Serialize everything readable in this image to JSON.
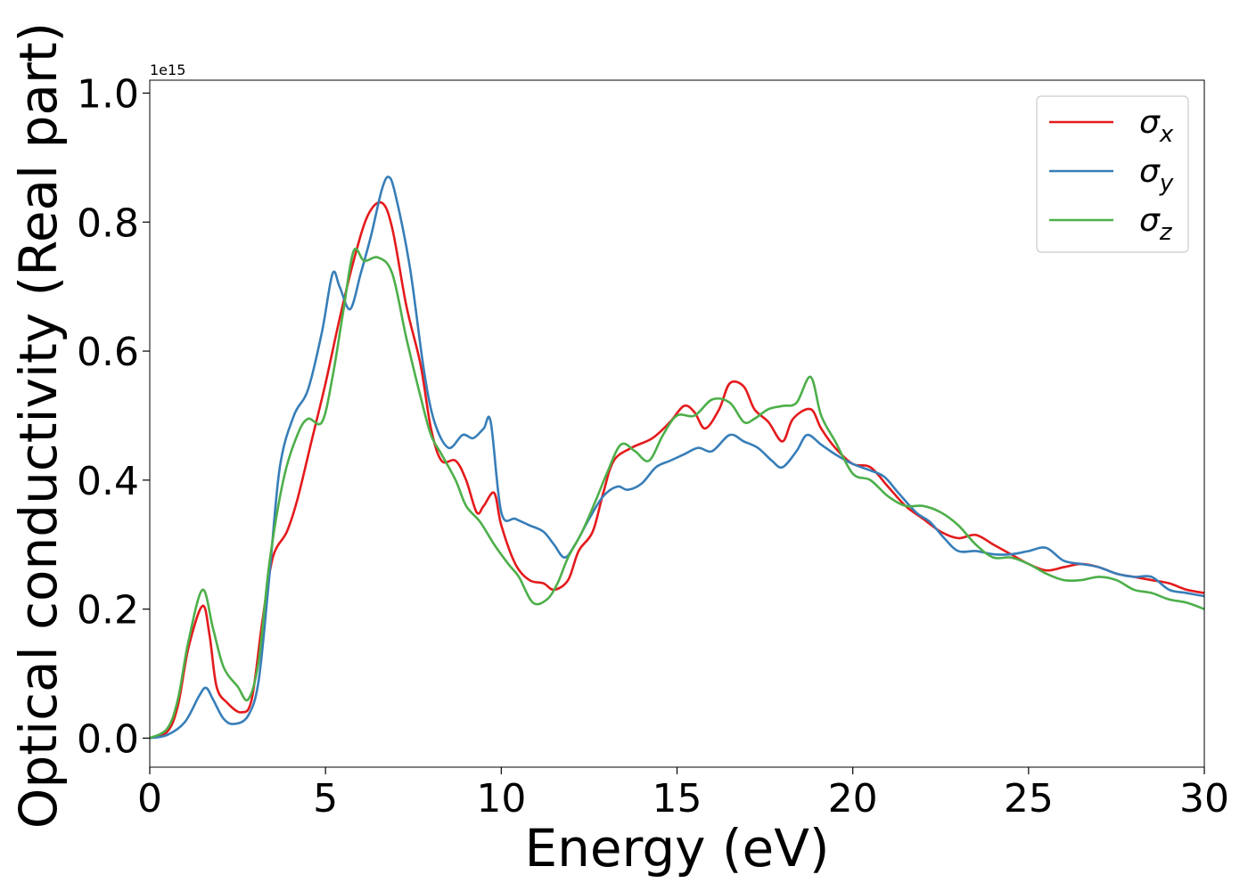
{
  "chart_data": {
    "type": "line",
    "xlabel": "Energy (eV)",
    "ylabel": "Optical conductivity (Real part)",
    "offset_label": "1e15",
    "xlim": [
      0,
      30
    ],
    "ylim": [
      -0.045,
      1.02
    ],
    "x_ticks": [
      0,
      5,
      10,
      15,
      20,
      25,
      30
    ],
    "x_tick_labels": [
      "0",
      "5",
      "10",
      "15",
      "20",
      "25",
      "30"
    ],
    "y_ticks": [
      0.0,
      0.2,
      0.4,
      0.6,
      0.8,
      1.0
    ],
    "y_tick_labels": [
      "0.0",
      "0.2",
      "0.4",
      "0.6",
      "0.8",
      "1.0"
    ],
    "grid": false,
    "legend_position": "top-right",
    "series": [
      {
        "name": "σx",
        "label_base": "σ",
        "label_sub": "x",
        "color": "#e41a1c",
        "points": [
          [
            0,
            0.0
          ],
          [
            0.5,
            0.01
          ],
          [
            0.8,
            0.05
          ],
          [
            1.1,
            0.14
          ],
          [
            1.5,
            0.205
          ],
          [
            1.7,
            0.16
          ],
          [
            1.9,
            0.08
          ],
          [
            2.2,
            0.055
          ],
          [
            2.6,
            0.04
          ],
          [
            2.9,
            0.06
          ],
          [
            3.2,
            0.18
          ],
          [
            3.5,
            0.28
          ],
          [
            3.9,
            0.32
          ],
          [
            4.2,
            0.37
          ],
          [
            4.6,
            0.46
          ],
          [
            5.0,
            0.55
          ],
          [
            5.4,
            0.65
          ],
          [
            5.8,
            0.74
          ],
          [
            6.2,
            0.81
          ],
          [
            6.6,
            0.83
          ],
          [
            6.9,
            0.79
          ],
          [
            7.3,
            0.67
          ],
          [
            7.7,
            0.58
          ],
          [
            8.0,
            0.48
          ],
          [
            8.3,
            0.43
          ],
          [
            8.7,
            0.43
          ],
          [
            9.0,
            0.4
          ],
          [
            9.3,
            0.35
          ],
          [
            9.5,
            0.36
          ],
          [
            9.8,
            0.38
          ],
          [
            10.0,
            0.33
          ],
          [
            10.4,
            0.27
          ],
          [
            10.8,
            0.245
          ],
          [
            11.2,
            0.24
          ],
          [
            11.5,
            0.23
          ],
          [
            11.9,
            0.245
          ],
          [
            12.2,
            0.29
          ],
          [
            12.6,
            0.32
          ],
          [
            12.9,
            0.38
          ],
          [
            13.2,
            0.43
          ],
          [
            13.7,
            0.45
          ],
          [
            14.3,
            0.465
          ],
          [
            14.8,
            0.49
          ],
          [
            15.2,
            0.515
          ],
          [
            15.5,
            0.505
          ],
          [
            15.8,
            0.48
          ],
          [
            16.2,
            0.51
          ],
          [
            16.5,
            0.55
          ],
          [
            16.9,
            0.545
          ],
          [
            17.2,
            0.51
          ],
          [
            17.6,
            0.49
          ],
          [
            18.0,
            0.46
          ],
          [
            18.3,
            0.495
          ],
          [
            18.8,
            0.51
          ],
          [
            19.1,
            0.48
          ],
          [
            19.5,
            0.45
          ],
          [
            20.0,
            0.425
          ],
          [
            20.5,
            0.42
          ],
          [
            21.0,
            0.39
          ],
          [
            21.5,
            0.36
          ],
          [
            22.0,
            0.34
          ],
          [
            22.5,
            0.32
          ],
          [
            23.0,
            0.31
          ],
          [
            23.5,
            0.315
          ],
          [
            24.0,
            0.3
          ],
          [
            24.5,
            0.285
          ],
          [
            25.0,
            0.27
          ],
          [
            25.5,
            0.26
          ],
          [
            26.0,
            0.265
          ],
          [
            26.5,
            0.27
          ],
          [
            27.0,
            0.265
          ],
          [
            27.5,
            0.255
          ],
          [
            28.0,
            0.25
          ],
          [
            28.5,
            0.245
          ],
          [
            29.0,
            0.24
          ],
          [
            29.5,
            0.23
          ],
          [
            30.0,
            0.225
          ]
        ]
      },
      {
        "name": "σy",
        "label_base": "σ",
        "label_sub": "y",
        "color": "#377eb8",
        "points": [
          [
            0,
            0.0
          ],
          [
            0.5,
            0.005
          ],
          [
            1.0,
            0.025
          ],
          [
            1.4,
            0.065
          ],
          [
            1.6,
            0.078
          ],
          [
            1.8,
            0.06
          ],
          [
            2.1,
            0.03
          ],
          [
            2.4,
            0.022
          ],
          [
            2.8,
            0.035
          ],
          [
            3.1,
            0.09
          ],
          [
            3.4,
            0.25
          ],
          [
            3.7,
            0.42
          ],
          [
            4.1,
            0.5
          ],
          [
            4.5,
            0.54
          ],
          [
            4.9,
            0.63
          ],
          [
            5.2,
            0.72
          ],
          [
            5.4,
            0.7
          ],
          [
            5.7,
            0.665
          ],
          [
            6.0,
            0.72
          ],
          [
            6.3,
            0.78
          ],
          [
            6.6,
            0.85
          ],
          [
            6.8,
            0.87
          ],
          [
            7.0,
            0.84
          ],
          [
            7.4,
            0.73
          ],
          [
            7.8,
            0.57
          ],
          [
            8.1,
            0.49
          ],
          [
            8.5,
            0.45
          ],
          [
            8.9,
            0.47
          ],
          [
            9.2,
            0.465
          ],
          [
            9.5,
            0.48
          ],
          [
            9.7,
            0.49
          ],
          [
            10.0,
            0.35
          ],
          [
            10.4,
            0.34
          ],
          [
            10.8,
            0.33
          ],
          [
            11.2,
            0.32
          ],
          [
            11.5,
            0.3
          ],
          [
            11.8,
            0.28
          ],
          [
            12.1,
            0.3
          ],
          [
            12.5,
            0.34
          ],
          [
            12.9,
            0.375
          ],
          [
            13.3,
            0.39
          ],
          [
            13.6,
            0.385
          ],
          [
            14.0,
            0.395
          ],
          [
            14.4,
            0.42
          ],
          [
            14.8,
            0.43
          ],
          [
            15.2,
            0.44
          ],
          [
            15.6,
            0.45
          ],
          [
            16.0,
            0.445
          ],
          [
            16.5,
            0.47
          ],
          [
            16.9,
            0.46
          ],
          [
            17.3,
            0.45
          ],
          [
            17.7,
            0.43
          ],
          [
            18.0,
            0.42
          ],
          [
            18.4,
            0.445
          ],
          [
            18.7,
            0.47
          ],
          [
            19.1,
            0.455
          ],
          [
            19.5,
            0.44
          ],
          [
            20.0,
            0.425
          ],
          [
            20.5,
            0.415
          ],
          [
            20.9,
            0.405
          ],
          [
            21.3,
            0.38
          ],
          [
            21.8,
            0.35
          ],
          [
            22.2,
            0.335
          ],
          [
            22.6,
            0.31
          ],
          [
            23.0,
            0.29
          ],
          [
            23.5,
            0.29
          ],
          [
            24.0,
            0.285
          ],
          [
            24.5,
            0.285
          ],
          [
            25.0,
            0.29
          ],
          [
            25.5,
            0.295
          ],
          [
            26.0,
            0.275
          ],
          [
            26.5,
            0.27
          ],
          [
            27.0,
            0.265
          ],
          [
            27.5,
            0.255
          ],
          [
            28.0,
            0.25
          ],
          [
            28.5,
            0.25
          ],
          [
            29.0,
            0.23
          ],
          [
            29.5,
            0.225
          ],
          [
            30.0,
            0.22
          ]
        ]
      },
      {
        "name": "σz",
        "label_base": "σ",
        "label_sub": "z",
        "color": "#4daf4a",
        "points": [
          [
            0,
            0.0
          ],
          [
            0.5,
            0.015
          ],
          [
            0.8,
            0.06
          ],
          [
            1.1,
            0.15
          ],
          [
            1.5,
            0.23
          ],
          [
            1.8,
            0.17
          ],
          [
            2.1,
            0.11
          ],
          [
            2.5,
            0.08
          ],
          [
            2.8,
            0.06
          ],
          [
            3.1,
            0.12
          ],
          [
            3.4,
            0.27
          ],
          [
            3.8,
            0.4
          ],
          [
            4.2,
            0.47
          ],
          [
            4.5,
            0.495
          ],
          [
            4.9,
            0.49
          ],
          [
            5.2,
            0.56
          ],
          [
            5.5,
            0.66
          ],
          [
            5.8,
            0.755
          ],
          [
            6.1,
            0.74
          ],
          [
            6.5,
            0.745
          ],
          [
            6.9,
            0.72
          ],
          [
            7.3,
            0.62
          ],
          [
            7.7,
            0.53
          ],
          [
            8.0,
            0.47
          ],
          [
            8.3,
            0.44
          ],
          [
            8.7,
            0.4
          ],
          [
            9.0,
            0.36
          ],
          [
            9.4,
            0.335
          ],
          [
            9.8,
            0.3
          ],
          [
            10.2,
            0.27
          ],
          [
            10.5,
            0.25
          ],
          [
            10.9,
            0.21
          ],
          [
            11.3,
            0.215
          ],
          [
            11.6,
            0.24
          ],
          [
            11.9,
            0.28
          ],
          [
            12.3,
            0.32
          ],
          [
            12.7,
            0.37
          ],
          [
            13.0,
            0.41
          ],
          [
            13.4,
            0.455
          ],
          [
            13.8,
            0.445
          ],
          [
            14.2,
            0.43
          ],
          [
            14.6,
            0.47
          ],
          [
            15.0,
            0.5
          ],
          [
            15.5,
            0.5
          ],
          [
            16.0,
            0.525
          ],
          [
            16.5,
            0.52
          ],
          [
            16.9,
            0.49
          ],
          [
            17.2,
            0.495
          ],
          [
            17.6,
            0.51
          ],
          [
            18.0,
            0.515
          ],
          [
            18.4,
            0.52
          ],
          [
            18.8,
            0.56
          ],
          [
            19.1,
            0.5
          ],
          [
            19.5,
            0.46
          ],
          [
            20.0,
            0.41
          ],
          [
            20.5,
            0.4
          ],
          [
            21.0,
            0.375
          ],
          [
            21.5,
            0.36
          ],
          [
            22.0,
            0.36
          ],
          [
            22.5,
            0.35
          ],
          [
            23.0,
            0.33
          ],
          [
            23.5,
            0.3
          ],
          [
            24.0,
            0.28
          ],
          [
            24.5,
            0.28
          ],
          [
            25.0,
            0.27
          ],
          [
            25.5,
            0.255
          ],
          [
            26.0,
            0.245
          ],
          [
            26.5,
            0.245
          ],
          [
            27.0,
            0.25
          ],
          [
            27.5,
            0.245
          ],
          [
            28.0,
            0.23
          ],
          [
            28.5,
            0.225
          ],
          [
            29.0,
            0.215
          ],
          [
            29.5,
            0.21
          ],
          [
            30.0,
            0.2
          ]
        ]
      }
    ]
  }
}
